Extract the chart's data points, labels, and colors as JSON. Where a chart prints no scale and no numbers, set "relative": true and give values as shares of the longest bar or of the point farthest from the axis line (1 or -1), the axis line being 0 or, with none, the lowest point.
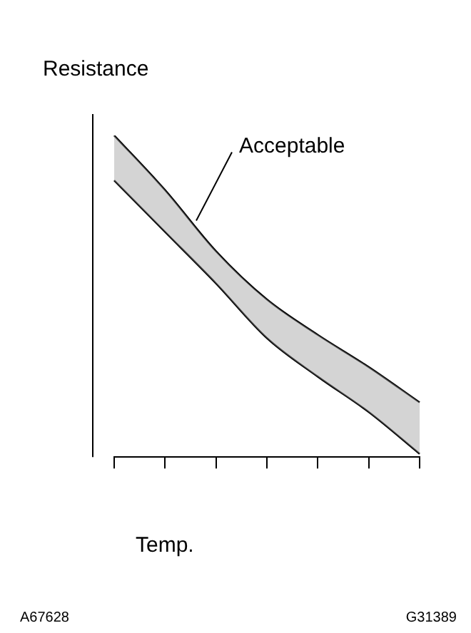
{
  "chart_data": {
    "type": "line",
    "relative": true,
    "ylabel": "Resistance",
    "xlabel": "Temp.",
    "categories": [
      null,
      null,
      null,
      null,
      null,
      null,
      null
    ],
    "series": [
      {
        "name": "Acceptable",
        "color": "#000000",
        "values": [
          1.0,
          0.83,
          0.64,
          0.49,
          0.38,
          0.28,
          0.17
        ],
        "lower": [
          0.86,
          0.7,
          0.54,
          0.37,
          0.25,
          0.14,
          0.01
        ],
        "upper": [
          1.0,
          0.83,
          0.64,
          0.49,
          0.38,
          0.28,
          0.17
        ]
      },
      {
        "color": "#000000",
        "values": [
          0.86,
          0.7,
          0.54,
          0.37,
          0.25,
          0.14,
          0.01
        ]
      }
    ],
    "annotations": [
      "A67628",
      "G31389"
    ],
    "grid": false,
    "legend": false,
    "marker": "none",
    "line_style": "solid"
  }
}
